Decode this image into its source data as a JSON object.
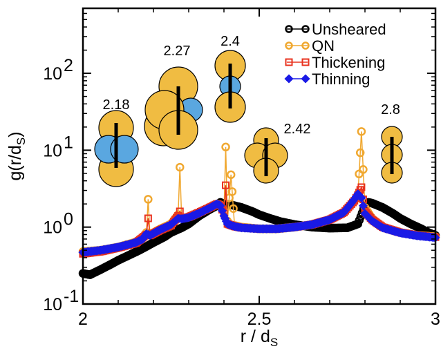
{
  "chart_data": {
    "type": "line",
    "xlabel": "r / d",
    "xlabel_sub": "S",
    "ylabel": "g(r/d",
    "ylabel_sub": "S",
    "ylabel_suffix": ")",
    "xlim": [
      2,
      3
    ],
    "ylim": [
      0.1,
      700
    ],
    "y_scale": "log",
    "x_ticks": [
      2,
      2.5,
      3
    ],
    "x_tick_labels": [
      "2",
      "2.5",
      "3"
    ],
    "y_ticks": [
      0.1,
      1,
      10,
      100
    ],
    "y_tick_labels": [
      {
        "base": "10",
        "exp": "-1"
      },
      {
        "base": "10",
        "exp": "0"
      },
      {
        "base": "10",
        "exp": "1"
      },
      {
        "base": "10",
        "exp": "2"
      }
    ],
    "legend_position": "top-right",
    "series": [
      {
        "name": "Unsheared",
        "color": "#000000",
        "marker": "circle",
        "points": [
          [
            2.0,
            0.25
          ],
          [
            2.02,
            0.24
          ],
          [
            2.05,
            0.28
          ],
          [
            2.08,
            0.33
          ],
          [
            2.1,
            0.37
          ],
          [
            2.13,
            0.43
          ],
          [
            2.16,
            0.5
          ],
          [
            2.18,
            0.56
          ],
          [
            2.2,
            0.63
          ],
          [
            2.23,
            0.74
          ],
          [
            2.25,
            0.85
          ],
          [
            2.28,
            0.98
          ],
          [
            2.3,
            1.1
          ],
          [
            2.33,
            1.4
          ],
          [
            2.36,
            1.7
          ],
          [
            2.38,
            1.9
          ],
          [
            2.39,
            2.1
          ],
          [
            2.4,
            2.0
          ],
          [
            2.42,
            1.95
          ],
          [
            2.45,
            1.8
          ],
          [
            2.48,
            1.6
          ],
          [
            2.5,
            1.45
          ],
          [
            2.53,
            1.3
          ],
          [
            2.56,
            1.18
          ],
          [
            2.6,
            1.08
          ],
          [
            2.65,
            1.0
          ],
          [
            2.7,
            0.97
          ],
          [
            2.75,
            0.98
          ],
          [
            2.78,
            1.1
          ],
          [
            2.8,
            1.9
          ],
          [
            2.81,
            2.1
          ],
          [
            2.82,
            2.05
          ],
          [
            2.85,
            1.8
          ],
          [
            2.88,
            1.5
          ],
          [
            2.9,
            1.3
          ],
          [
            2.93,
            1.1
          ],
          [
            2.96,
            0.95
          ],
          [
            2.98,
            0.85
          ],
          [
            3.0,
            0.78
          ]
        ]
      },
      {
        "name": "QN",
        "color": "#f0a830",
        "marker": "circle",
        "points": [
          [
            2.0,
            0.48
          ],
          [
            2.05,
            0.5
          ],
          [
            2.1,
            0.55
          ],
          [
            2.15,
            0.64
          ],
          [
            2.17,
            0.72
          ],
          [
            2.18,
            0.85
          ],
          [
            2.185,
            2.3
          ],
          [
            2.19,
            0.8
          ],
          [
            2.22,
            0.95
          ],
          [
            2.25,
            1.1
          ],
          [
            2.27,
            1.45
          ],
          [
            2.275,
            6.0
          ],
          [
            2.28,
            1.3
          ],
          [
            2.3,
            1.35
          ],
          [
            2.33,
            1.55
          ],
          [
            2.36,
            1.8
          ],
          [
            2.38,
            2.0
          ],
          [
            2.39,
            1.95
          ],
          [
            2.4,
            1.6
          ],
          [
            2.405,
            11.0
          ],
          [
            2.41,
            1.2
          ],
          [
            2.42,
            4.8
          ],
          [
            2.43,
            1.05
          ],
          [
            2.45,
            1.0
          ],
          [
            2.5,
            0.95
          ],
          [
            2.55,
            0.95
          ],
          [
            2.6,
            1.0
          ],
          [
            2.65,
            1.08
          ],
          [
            2.7,
            1.25
          ],
          [
            2.74,
            1.55
          ],
          [
            2.77,
            2.2
          ],
          [
            2.78,
            2.6
          ],
          [
            2.79,
            17.5
          ],
          [
            2.8,
            1.8
          ],
          [
            2.82,
            1.3
          ],
          [
            2.85,
            1.0
          ],
          [
            2.9,
            0.85
          ],
          [
            2.95,
            0.78
          ],
          [
            3.0,
            0.75
          ]
        ]
      },
      {
        "name": "Thickening",
        "color": "#e8321e",
        "marker": "square",
        "points": [
          [
            2.0,
            0.45
          ],
          [
            2.05,
            0.48
          ],
          [
            2.1,
            0.54
          ],
          [
            2.15,
            0.62
          ],
          [
            2.18,
            0.8
          ],
          [
            2.185,
            1.3
          ],
          [
            2.19,
            0.78
          ],
          [
            2.22,
            0.92
          ],
          [
            2.25,
            1.05
          ],
          [
            2.27,
            1.4
          ],
          [
            2.275,
            1.6
          ],
          [
            2.28,
            1.3
          ],
          [
            2.3,
            1.35
          ],
          [
            2.33,
            1.55
          ],
          [
            2.36,
            1.8
          ],
          [
            2.38,
            2.0
          ],
          [
            2.39,
            1.9
          ],
          [
            2.4,
            1.5
          ],
          [
            2.405,
            3.5
          ],
          [
            2.41,
            1.1
          ],
          [
            2.43,
            1.02
          ],
          [
            2.45,
            0.98
          ],
          [
            2.5,
            0.95
          ],
          [
            2.55,
            0.95
          ],
          [
            2.6,
            1.0
          ],
          [
            2.65,
            1.08
          ],
          [
            2.7,
            1.25
          ],
          [
            2.74,
            1.55
          ],
          [
            2.77,
            2.2
          ],
          [
            2.78,
            2.6
          ],
          [
            2.79,
            3.3
          ],
          [
            2.8,
            1.6
          ],
          [
            2.82,
            1.25
          ],
          [
            2.85,
            1.0
          ],
          [
            2.9,
            0.85
          ],
          [
            2.95,
            0.78
          ],
          [
            3.0,
            0.74
          ]
        ]
      },
      {
        "name": "Thinning",
        "color": "#1a1ae6",
        "marker": "diamond",
        "points": [
          [
            2.0,
            0.47
          ],
          [
            2.05,
            0.5
          ],
          [
            2.1,
            0.55
          ],
          [
            2.15,
            0.63
          ],
          [
            2.17,
            0.7
          ],
          [
            2.18,
            0.82
          ],
          [
            2.19,
            0.78
          ],
          [
            2.22,
            0.93
          ],
          [
            2.25,
            1.08
          ],
          [
            2.27,
            1.3
          ],
          [
            2.28,
            1.28
          ],
          [
            2.3,
            1.33
          ],
          [
            2.33,
            1.52
          ],
          [
            2.36,
            1.78
          ],
          [
            2.38,
            2.0
          ],
          [
            2.39,
            1.9
          ],
          [
            2.4,
            1.4
          ],
          [
            2.41,
            1.1
          ],
          [
            2.43,
            1.02
          ],
          [
            2.45,
            0.98
          ],
          [
            2.5,
            0.95
          ],
          [
            2.55,
            0.95
          ],
          [
            2.6,
            1.0
          ],
          [
            2.65,
            1.08
          ],
          [
            2.7,
            1.25
          ],
          [
            2.74,
            1.55
          ],
          [
            2.77,
            2.3
          ],
          [
            2.78,
            2.7
          ],
          [
            2.79,
            2.4
          ],
          [
            2.8,
            1.5
          ],
          [
            2.82,
            1.2
          ],
          [
            2.85,
            0.98
          ],
          [
            2.9,
            0.84
          ],
          [
            2.95,
            0.77
          ],
          [
            3.0,
            0.73
          ]
        ]
      }
    ],
    "annotations": [
      {
        "label": "2.18",
        "x": 2.09,
        "y": 13
      },
      {
        "label": "2.27",
        "x": 2.255,
        "y": 60
      },
      {
        "label": "2.4",
        "x": 2.405,
        "y": 140
      },
      {
        "label": "2.42",
        "x": 2.52,
        "y": 10
      },
      {
        "label": "2.8",
        "x": 2.875,
        "y": 17
      }
    ],
    "colors": {
      "sphere_large": "#f0bc42",
      "sphere_small": "#5aa7e0"
    }
  }
}
